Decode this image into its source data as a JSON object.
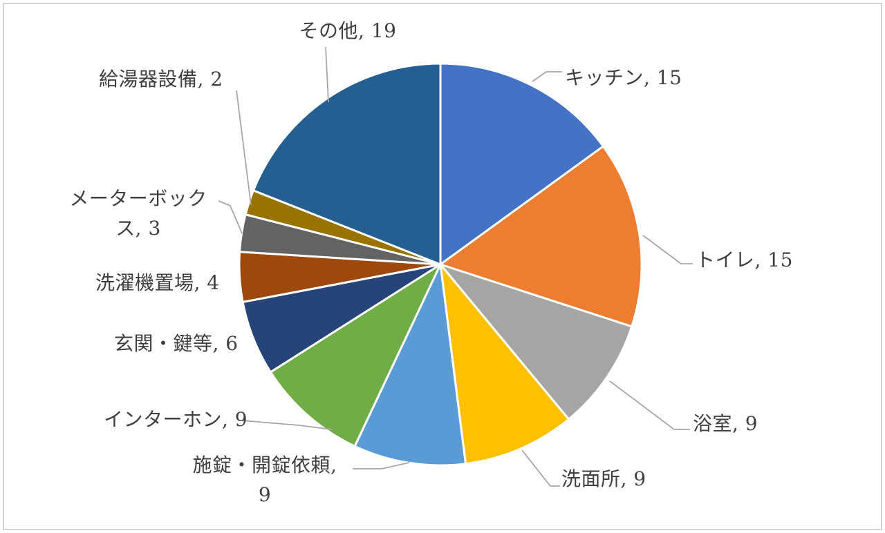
{
  "chart_data": {
    "type": "pie",
    "title": "",
    "total": 100,
    "start_angle_deg": 0,
    "direction": "clockwise",
    "legend": "none",
    "data_label_format": "category name, value",
    "slices": [
      {
        "label": "キッチン",
        "value": 15,
        "color": "#4472C4",
        "label_lines": [
          "キッチン, 15"
        ]
      },
      {
        "label": "トイレ",
        "value": 15,
        "color": "#ED7D31",
        "label_lines": [
          "トイレ, 15"
        ]
      },
      {
        "label": "浴室",
        "value": 9,
        "color": "#A5A5A5",
        "label_lines": [
          "浴室, 9"
        ]
      },
      {
        "label": "洗面所",
        "value": 9,
        "color": "#FFC000",
        "label_lines": [
          "洗面所, 9"
        ]
      },
      {
        "label": "施錠・開錠依頼",
        "value": 9,
        "color": "#5B9BD5",
        "label_lines": [
          "施錠・開錠依頼,",
          "9"
        ]
      },
      {
        "label": "インターホン",
        "value": 9,
        "color": "#70AD47",
        "label_lines": [
          "インターホン, 9"
        ]
      },
      {
        "label": "玄関・鍵等",
        "value": 6,
        "color": "#264478",
        "label_lines": [
          "玄関・鍵等, 6"
        ]
      },
      {
        "label": "洗濯機置場",
        "value": 4,
        "color": "#9E480E",
        "label_lines": [
          "洗濯機置場, 4"
        ]
      },
      {
        "label": "メーターボックス",
        "value": 3,
        "color": "#636363",
        "label_lines": [
          "メーターボック",
          "ス, 3"
        ]
      },
      {
        "label": "給湯器設備",
        "value": 2,
        "color": "#997300",
        "label_lines": [
          "給湯器設備, 2"
        ]
      },
      {
        "label": "その他",
        "value": 19,
        "color": "#255E91",
        "label_lines": [
          "その他, 19"
        ]
      }
    ]
  },
  "styles": {
    "background": "#FFFFFF",
    "frame_border_color": "#D3D3D3",
    "slice_border_color": "#FFFFFF",
    "leader_line_color": "#A6A6A6",
    "label_text_color": "#3F3F3F"
  }
}
